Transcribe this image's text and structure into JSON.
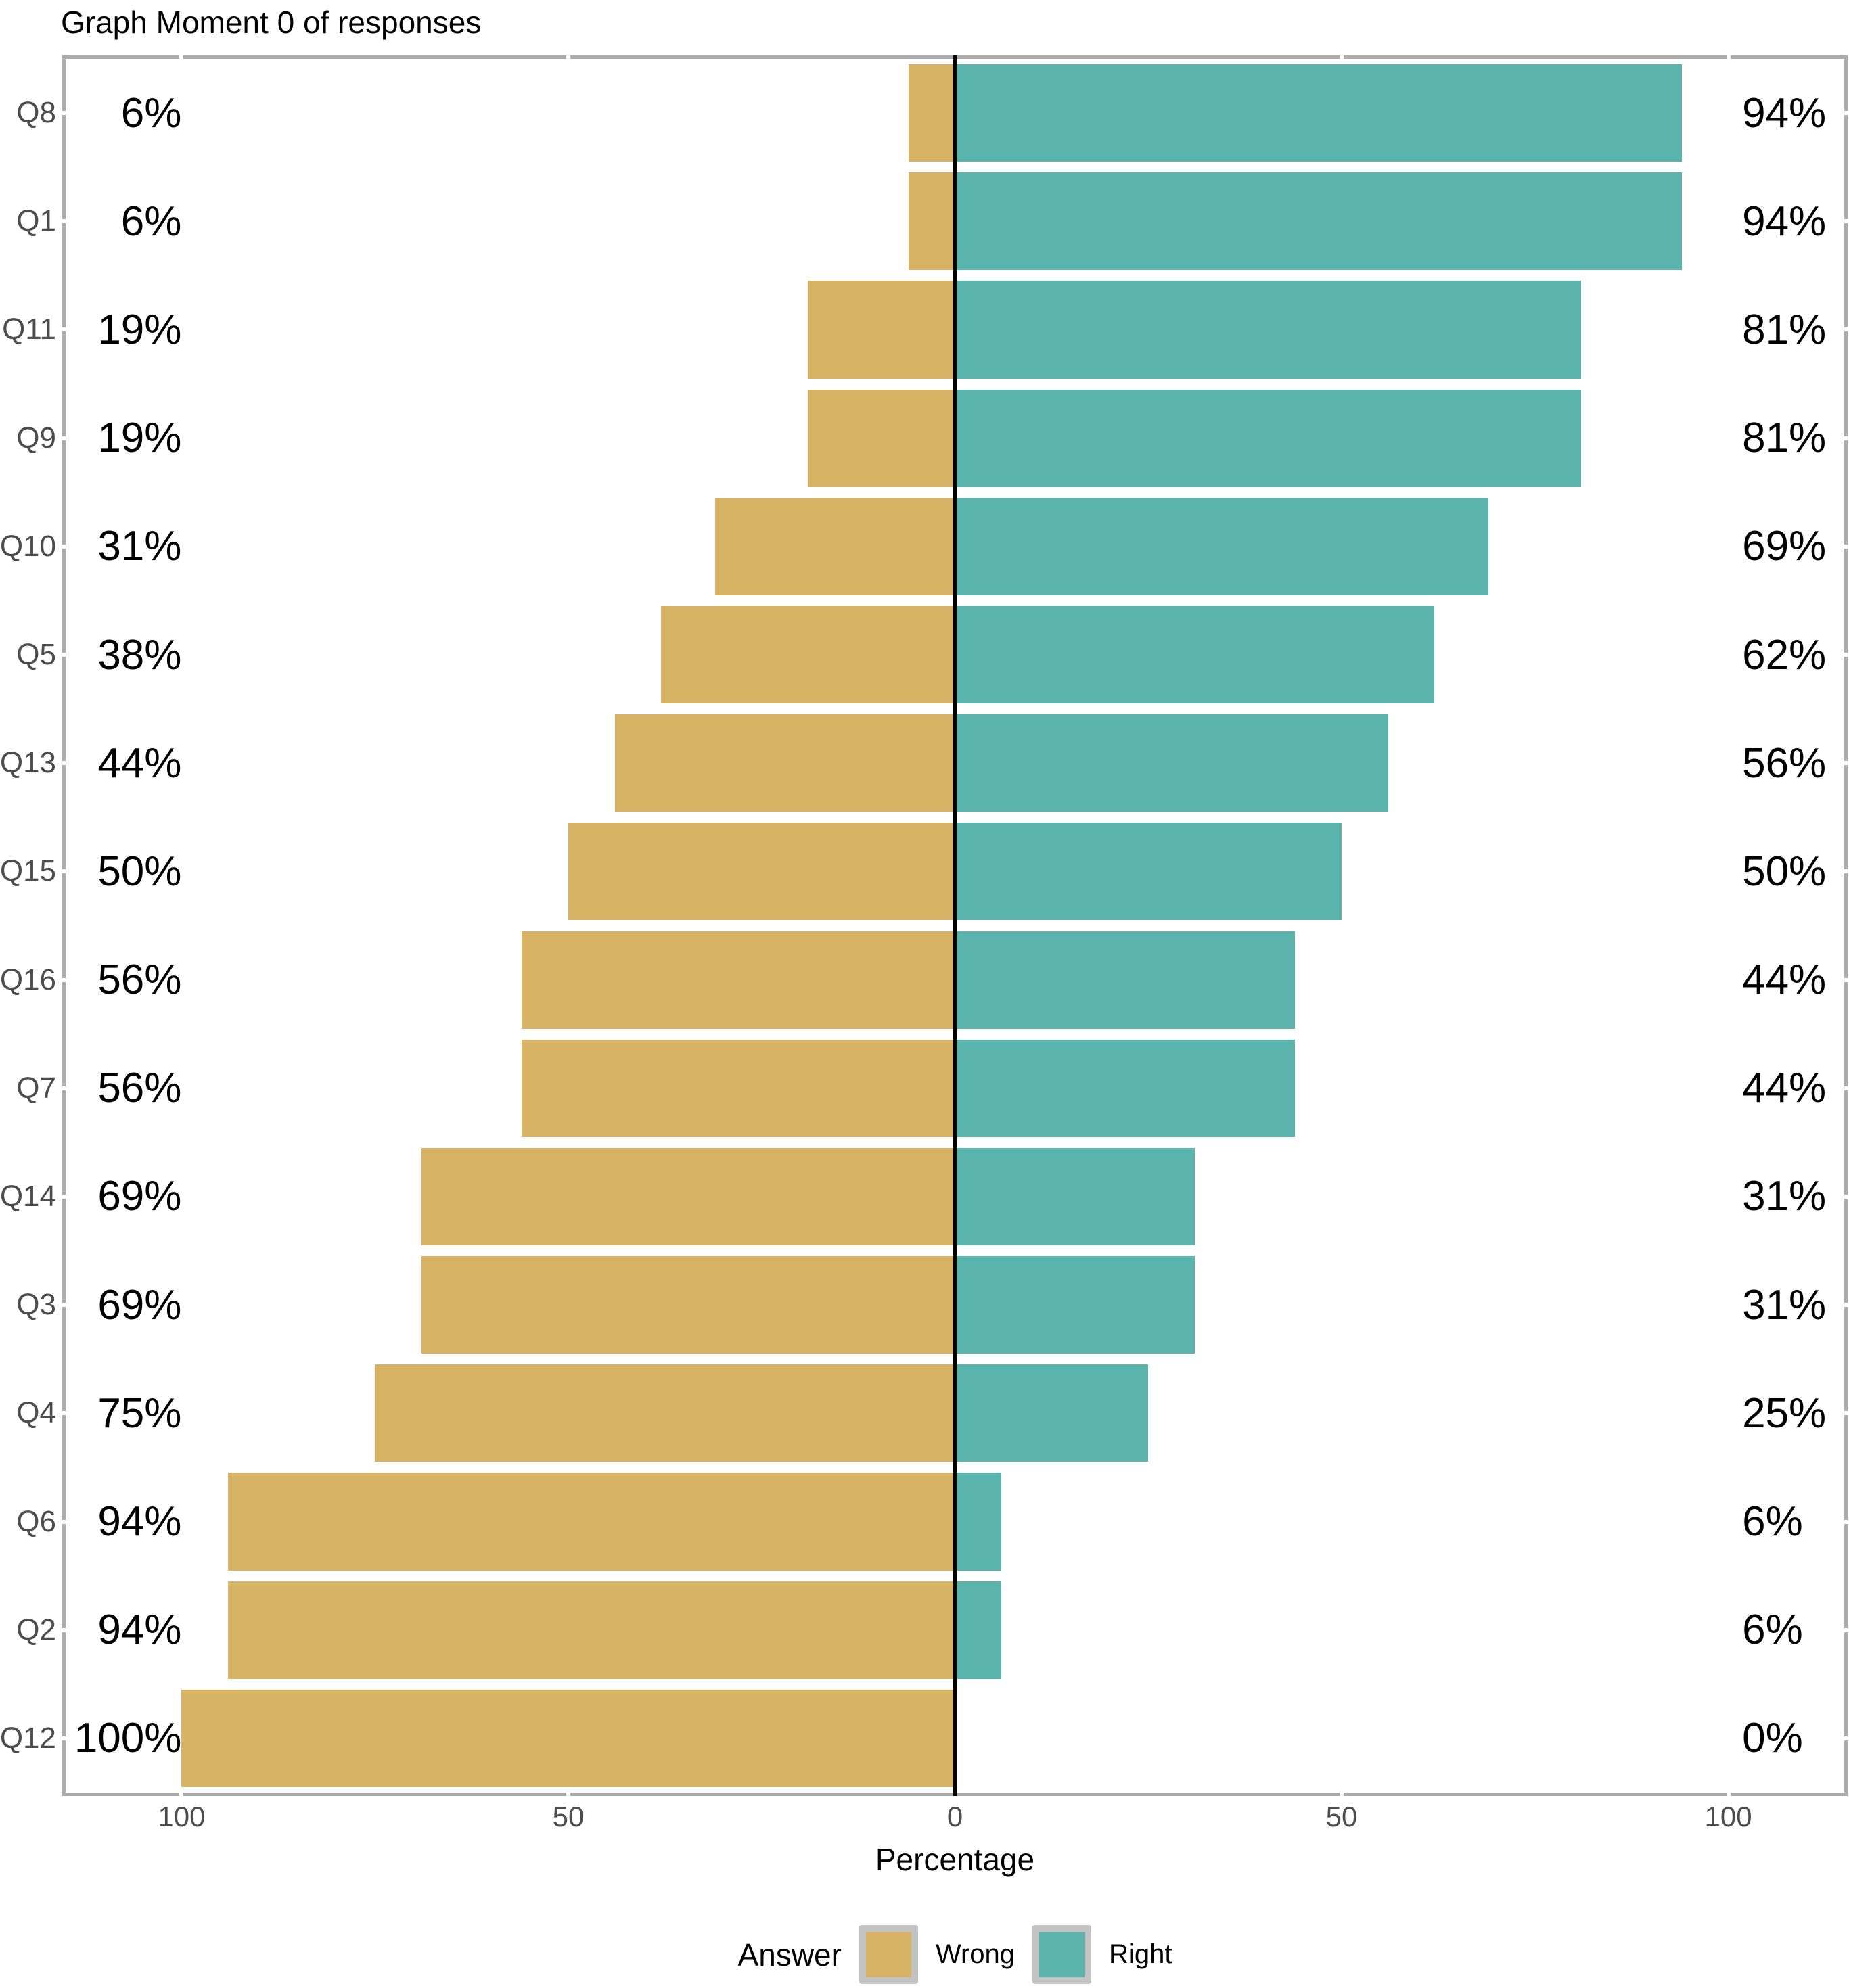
{
  "chart_data": {
    "type": "bar",
    "orientation": "horizontal-diverging",
    "title": "Graph Moment 0 of responses",
    "xlabel": "Percentage",
    "ylabel": "",
    "xlim": [
      -115,
      115
    ],
    "x_ticks": [
      -100,
      -50,
      0,
      50,
      100
    ],
    "x_tick_labels": [
      "100",
      "50",
      "0",
      "50",
      "100"
    ],
    "grid": false,
    "zero_line_color": "#000000",
    "categories": [
      "Q8",
      "Q1",
      "Q11",
      "Q9",
      "Q10",
      "Q5",
      "Q13",
      "Q15",
      "Q16",
      "Q7",
      "Q14",
      "Q3",
      "Q4",
      "Q6",
      "Q2",
      "Q12"
    ],
    "series": [
      {
        "name": "Wrong",
        "side": "left",
        "color": "#D8B365",
        "values": [
          6,
          6,
          19,
          19,
          31,
          38,
          44,
          50,
          56,
          56,
          69,
          69,
          75,
          94,
          94,
          100
        ]
      },
      {
        "name": "Right",
        "side": "right",
        "color": "#5AB4AC",
        "values": [
          94,
          94,
          81,
          81,
          69,
          62,
          56,
          50,
          44,
          44,
          31,
          31,
          25,
          6,
          6,
          0
        ]
      }
    ],
    "left_value_labels": [
      "6%",
      "6%",
      "19%",
      "19%",
      "31%",
      "38%",
      "44%",
      "50%",
      "56%",
      "56%",
      "69%",
      "69%",
      "75%",
      "94%",
      "94%",
      "100%"
    ],
    "right_value_labels": [
      "94%",
      "94%",
      "81%",
      "81%",
      "69%",
      "62%",
      "56%",
      "50%",
      "44%",
      "44%",
      "31%",
      "31%",
      "25%",
      "6%",
      "6%",
      "0%"
    ],
    "legend": {
      "title": "Answer",
      "position": "bottom",
      "entries": [
        {
          "label": "Wrong",
          "color": "#D8B365"
        },
        {
          "label": "Right",
          "color": "#5AB4AC"
        }
      ]
    },
    "style": {
      "panel_border_color": "#ACACAC",
      "tick_mark_color": "#ffffff",
      "axis_text_color": "#4D4D4D",
      "title_color": "#000000",
      "legend_key_background": "#C2C2C2"
    }
  }
}
